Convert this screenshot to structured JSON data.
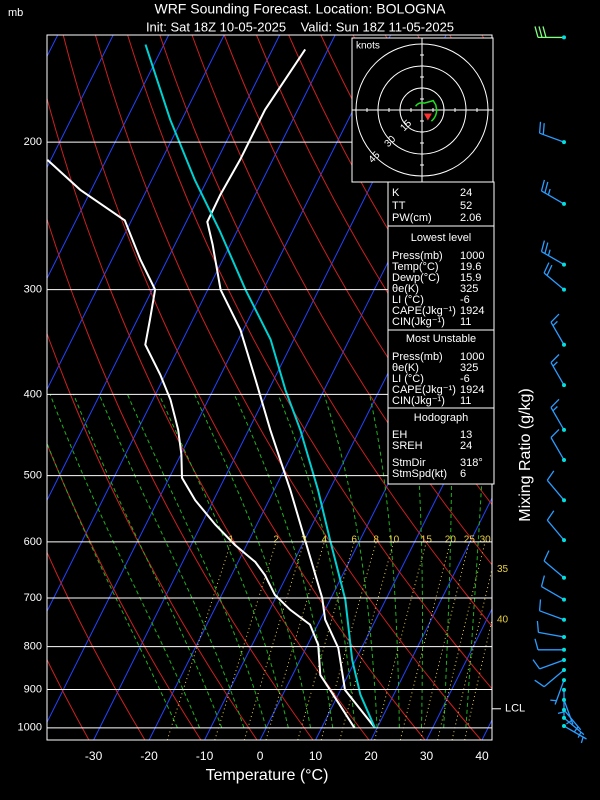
{
  "chart_data": {
    "type": "skewt",
    "title": "WRF Sounding Forecast. Location: BOLOGNA",
    "subtitle": "Init: Sat 18Z 10-05-2025    Valid: Sun 18Z 11-05-2025",
    "y_unit_label": "mb",
    "xlabel": "Temperature (°C)",
    "y2label": "Mixing Ratio (g/kg)",
    "log_y": true,
    "ylim": [
      1034,
      149
    ],
    "yticks": [
      200,
      300,
      400,
      500,
      600,
      700,
      800,
      900,
      1000
    ],
    "xlim": [
      -38.4,
      41.8
    ],
    "xticks": [
      -30,
      -20,
      -10,
      0,
      10,
      20,
      30,
      40
    ],
    "series": [
      {
        "color": "#ffffff",
        "pressure": [
          1000,
          901,
          803,
          743,
          700,
          597,
          520,
          441,
          384,
          335,
          300,
          265,
          249,
          231,
          210,
          183,
          155
        ],
        "values": [
          19.6,
          10.8,
          5.8,
          0.9,
          -1.6,
          -9.9,
          -17.1,
          -26.1,
          -33.3,
          -40.5,
          -47.7,
          -53.2,
          -56.2,
          -56.3,
          -55.9,
          -55.9,
          -54.1
        ]
      },
      {
        "color": "#ffffff",
        "pressure": [
          1000,
          901,
          865,
          796,
          753,
          723,
          694,
          657,
          634,
          605,
          572,
          535,
          503,
          472,
          441,
          406,
          379,
          349,
          326,
          300,
          276,
          248,
          228,
          210
        ],
        "values": [
          15.9,
          8.1,
          5.0,
          1.9,
          -1.4,
          -6.3,
          -10.4,
          -14.0,
          -16.9,
          -22.1,
          -27.5,
          -33.3,
          -37.7,
          -39.9,
          -42.7,
          -46.8,
          -50.9,
          -56.3,
          -57.7,
          -59.5,
          -64.9,
          -71.2,
          -82.0,
          -90.6
        ]
      },
      {
        "color": "#00d0d0",
        "pressure": [
          1000,
          913,
          830,
          703,
          597,
          520,
          441,
          395,
          344,
          300,
          255,
          222,
          188,
          153
        ],
        "values": [
          19.6,
          14.0,
          9.4,
          2.7,
          -5.4,
          -12.1,
          -20.7,
          -27.0,
          -34.2,
          -43.2,
          -53.2,
          -62.2,
          -72.1,
          -83.3
        ]
      }
    ],
    "mixing_ratio": {
      "color": "#e8d040",
      "values": [
        1,
        2,
        3,
        4,
        6,
        8,
        10,
        15,
        20,
        25,
        30,
        35,
        40
      ]
    },
    "lcl": {
      "label": "LCL",
      "pressure": 949
    },
    "winds": {
      "color": "#2a9dff",
      "pressure": [
        150,
        200,
        237,
        280,
        300,
        349,
        390,
        441,
        479,
        535,
        597,
        662,
        703,
        743,
        779,
        807,
        830,
        853,
        877,
        901,
        926,
        952,
        973,
        995
      ],
      "direction": [
        270,
        290,
        300,
        300,
        310,
        330,
        330,
        330,
        330,
        320,
        320,
        310,
        300,
        290,
        280,
        270,
        250,
        230,
        200,
        180,
        160,
        140,
        130,
        120
      ],
      "speed": [
        30,
        20,
        25,
        25,
        20,
        15,
        15,
        15,
        10,
        10,
        10,
        10,
        10,
        10,
        10,
        10,
        10,
        10,
        5,
        5,
        5,
        5,
        5,
        5
      ]
    },
    "hodograph": {
      "unit_label": "knots",
      "rings": [
        15,
        30,
        45
      ]
    },
    "indices": {
      "rows": [
        [
          "K",
          24
        ],
        [
          "TT",
          52
        ],
        [
          "PW(cm)",
          2.06
        ]
      ]
    },
    "lowest_level": {
      "title": "Lowest level",
      "rows": [
        [
          "Press(mb)",
          1000
        ],
        [
          "Temp(°C)",
          19.6
        ],
        [
          "Dewp(°C)",
          15.9
        ],
        [
          "θe(K)",
          325
        ],
        [
          "LI (°C)",
          -6
        ],
        [
          "CAPE(Jkg⁻¹)",
          1924
        ],
        [
          "CIN(Jkg⁻¹)",
          11
        ]
      ]
    },
    "most_unstable": {
      "title": "Most Unstable",
      "rows": [
        [
          "Press(mb)",
          1000
        ],
        [
          "θe(K)",
          325
        ],
        [
          "LI (°C)",
          -6
        ],
        [
          "CAPE(Jkg⁻¹)",
          1924
        ],
        [
          "CIN(Jkg⁻¹)",
          11
        ]
      ]
    },
    "hodograph_params": {
      "title": "Hodograph",
      "rows": [
        [
          "EH",
          13
        ],
        [
          "SREH",
          24
        ],
        [
          "StmDir",
          {
            "value": 318,
            "label": "318°"
          }
        ],
        [
          "StmSpd(kt)",
          6
        ]
      ]
    }
  }
}
